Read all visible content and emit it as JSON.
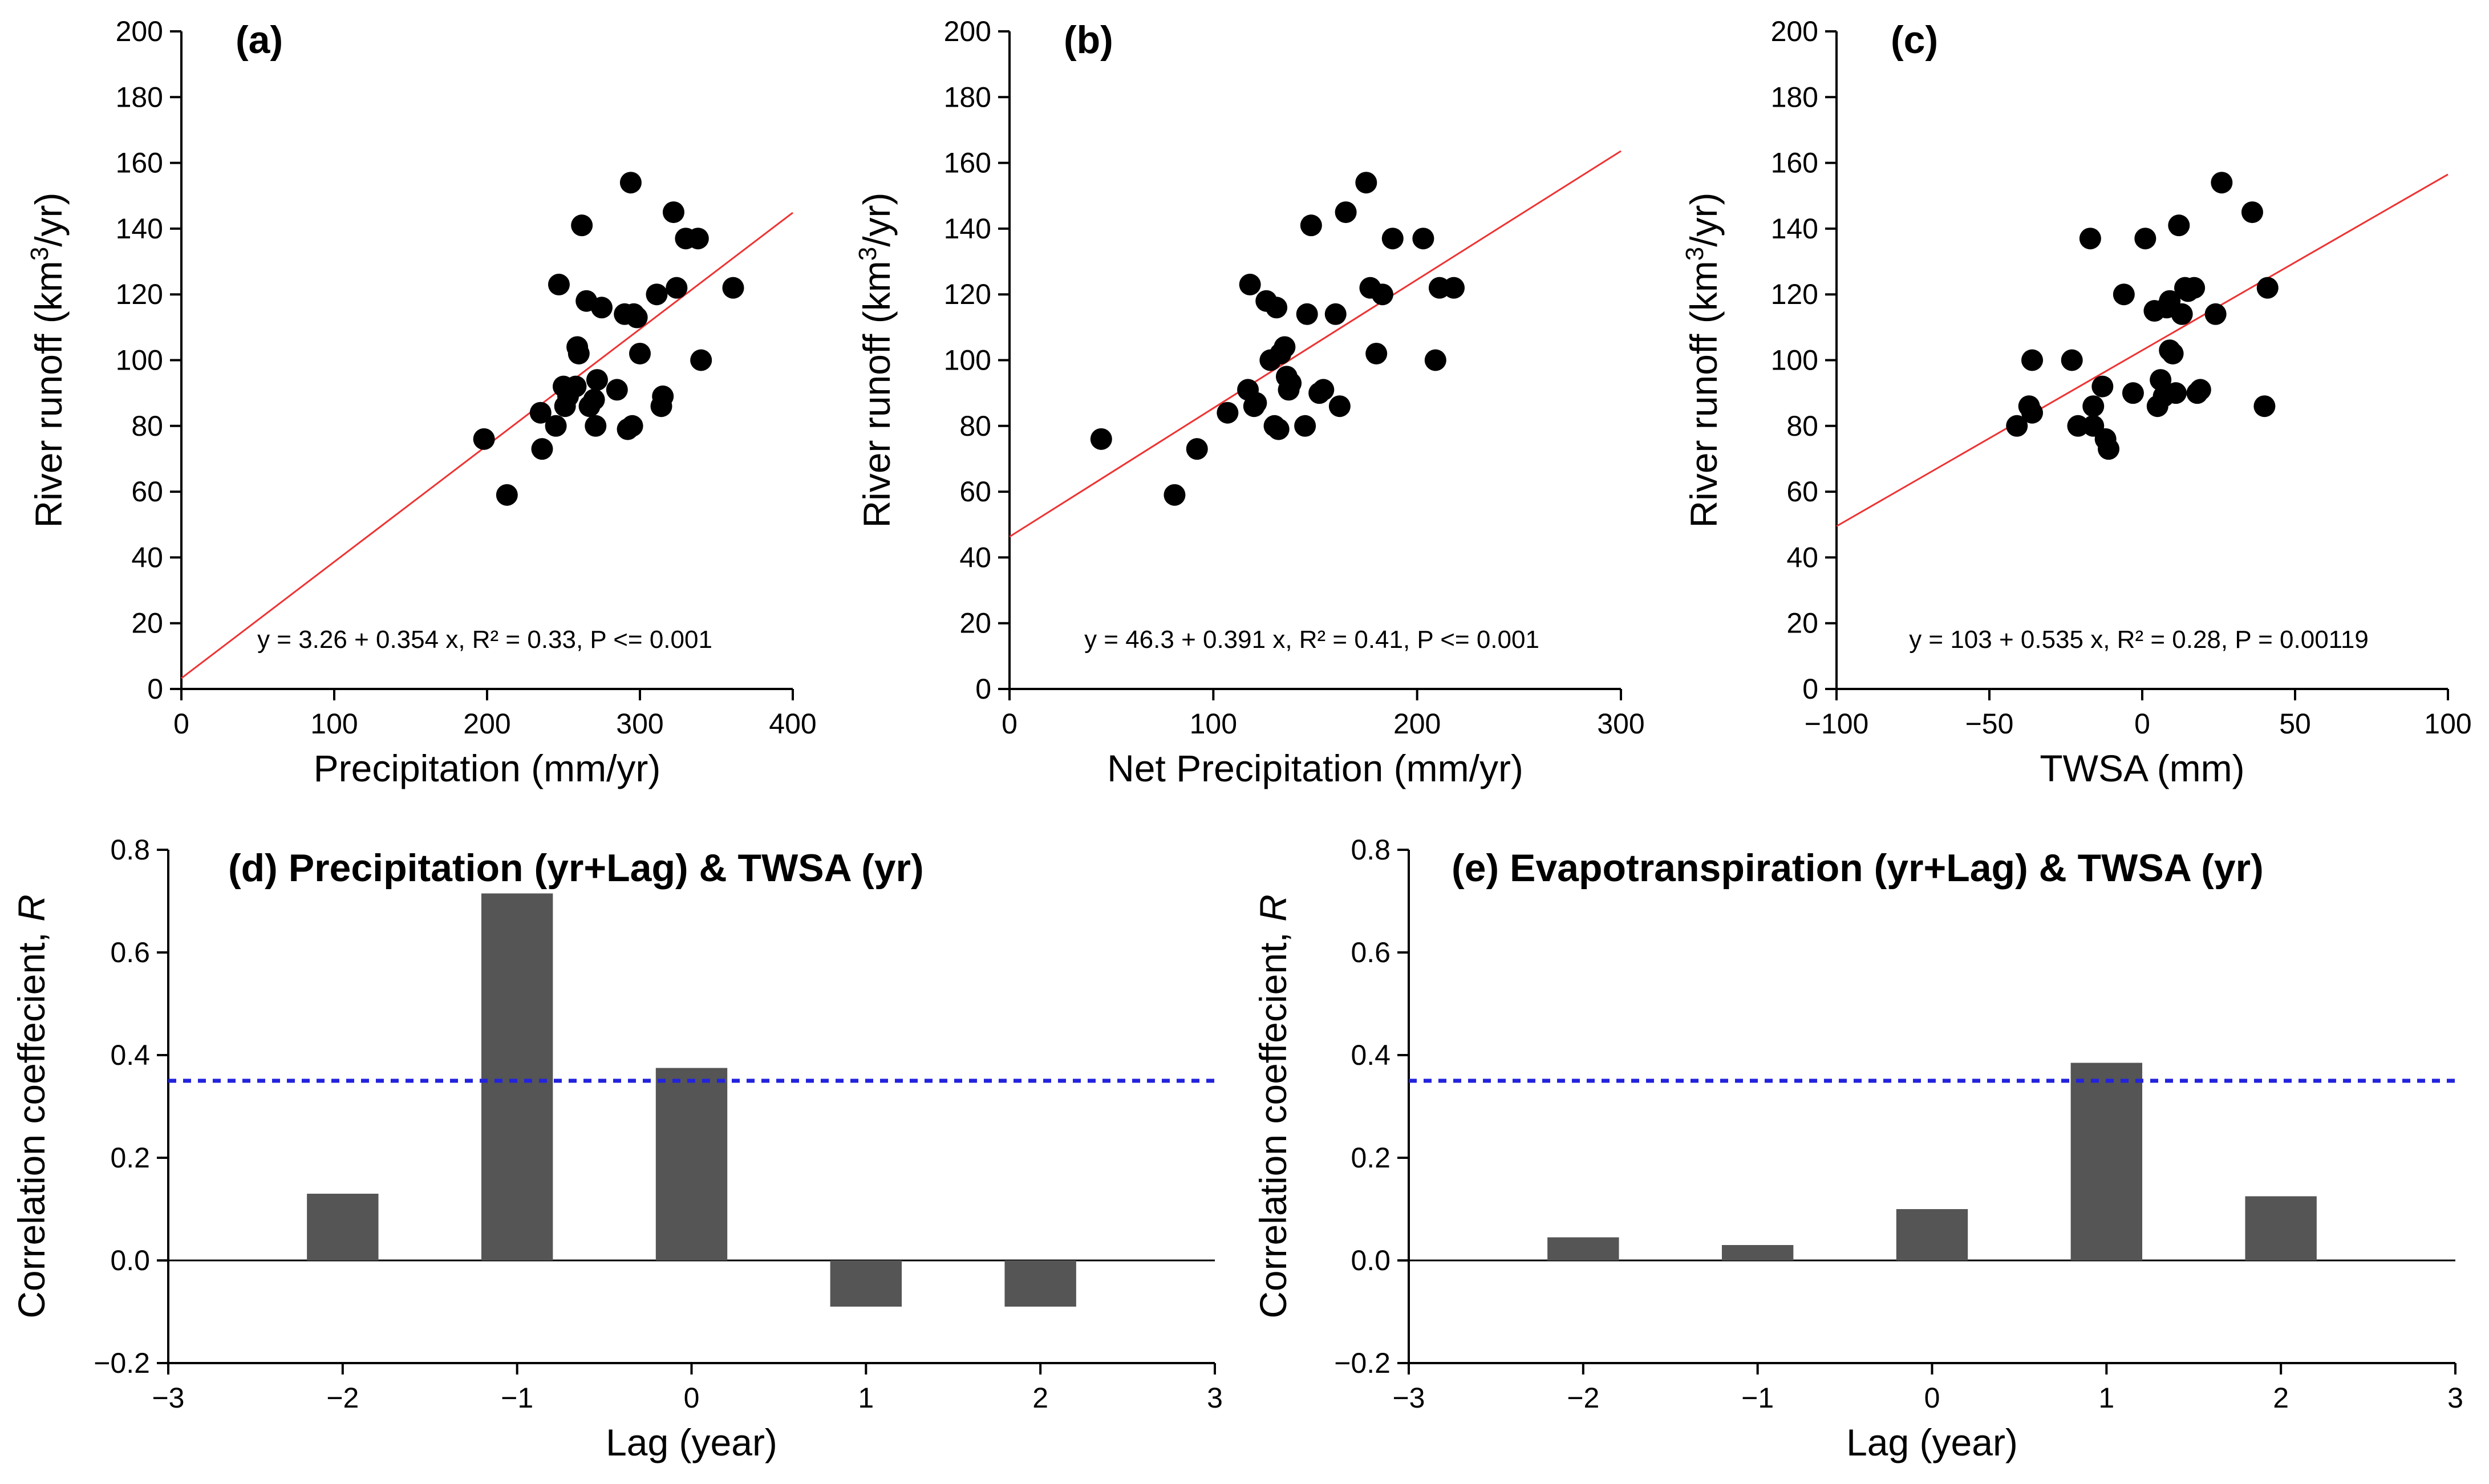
{
  "chart_data": [
    {
      "type": "scatter",
      "title": "(a)",
      "xlabel": "Precipitation (mm/yr)",
      "ylabel_main": "River runoff (km",
      "ylabel_sup": "3",
      "ylabel_tail": "/yr)",
      "xlim": [
        0,
        400
      ],
      "ylim": [
        0,
        200
      ],
      "xticks": [
        0,
        100,
        200,
        300,
        400
      ],
      "xtick_labels": [
        "0",
        "100",
        "200",
        "300",
        "400"
      ],
      "yticks": [
        0,
        20,
        40,
        60,
        80,
        100,
        120,
        140,
        160,
        180,
        200
      ],
      "ytick_labels": [
        "0",
        "20",
        "40",
        "60",
        "80",
        "100",
        "120",
        "140",
        "160",
        "180",
        "200"
      ],
      "equation": "y = 3.26 + 0.354 x, R² = 0.33, P <= 0.001",
      "fit": {
        "intercept": 3.26,
        "slope": 0.354,
        "color": "#ee3333"
      },
      "x": [
        198,
        213,
        235,
        236,
        245,
        247,
        250,
        251,
        253,
        258,
        259,
        260,
        262,
        265,
        267,
        270,
        271,
        272,
        275,
        285,
        290,
        292,
        294,
        295,
        296,
        298,
        300,
        311,
        314,
        315,
        322,
        324,
        330,
        338,
        340,
        361
      ],
      "y": [
        76,
        59,
        84,
        73,
        80,
        123,
        92,
        86,
        89,
        92,
        104,
        102,
        141,
        118,
        86,
        88,
        80,
        94,
        116,
        91,
        114,
        79,
        154,
        80,
        114,
        113,
        102,
        120,
        86,
        89,
        145,
        122,
        137,
        137,
        100,
        122
      ]
    },
    {
      "type": "scatter",
      "title": "(b)",
      "xlabel": "Net Precipitation (mm/yr)",
      "ylabel_main": "River runoff (km",
      "ylabel_sup": "3",
      "ylabel_tail": "/yr)",
      "xlim": [
        0,
        300
      ],
      "ylim": [
        0,
        200
      ],
      "xticks": [
        0,
        100,
        200,
        300
      ],
      "xtick_labels": [
        "0",
        "100",
        "200",
        "300"
      ],
      "yticks": [
        0,
        20,
        40,
        60,
        80,
        100,
        120,
        140,
        160,
        180,
        200
      ],
      "ytick_labels": [
        "0",
        "20",
        "40",
        "60",
        "80",
        "100",
        "120",
        "140",
        "160",
        "180",
        "200"
      ],
      "equation": "y = 46.3 + 0.391 x, R² = 0.41, P <= 0.001",
      "fit": {
        "intercept": 46.3,
        "slope": 0.391,
        "color": "#ee3333"
      },
      "x": [
        45,
        81,
        92,
        107,
        117,
        118,
        120,
        121,
        126,
        128,
        130,
        131,
        132,
        133,
        135,
        136,
        137,
        138,
        145,
        146,
        148,
        152,
        154,
        160,
        162,
        165,
        175,
        177,
        180,
        183,
        188,
        203,
        209,
        211,
        218
      ],
      "y": [
        76,
        59,
        73,
        84,
        91,
        123,
        86,
        87,
        118,
        100,
        80,
        116,
        79,
        102,
        104,
        95,
        91,
        93,
        80,
        114,
        141,
        90,
        91,
        114,
        86,
        145,
        154,
        122,
        102,
        120,
        137,
        137,
        100,
        122,
        122
      ]
    },
    {
      "type": "scatter",
      "title": "(c)",
      "xlabel": "TWSA (mm)",
      "ylabel_main": "River runoff (km",
      "ylabel_sup": "3",
      "ylabel_tail": "/yr)",
      "xlim": [
        -100,
        100
      ],
      "ylim": [
        0,
        200
      ],
      "xticks": [
        -100,
        -50,
        0,
        50,
        100
      ],
      "xtick_labels": [
        "−100",
        "−50",
        "0",
        "50",
        "100"
      ],
      "yticks": [
        0,
        20,
        40,
        60,
        80,
        100,
        120,
        140,
        160,
        180,
        200
      ],
      "ytick_labels": [
        "0",
        "20",
        "40",
        "60",
        "80",
        "100",
        "120",
        "140",
        "160",
        "180",
        "200"
      ],
      "equation": "y = 103 + 0.535 x, R² = 0.28, P = 0.00119",
      "fit": {
        "intercept": 103,
        "slope": 0.535,
        "color": "#ee3333"
      },
      "x": [
        -41,
        -37,
        -36,
        -36,
        -23,
        -21,
        -17,
        -16,
        -16,
        -13,
        -12,
        -11,
        -6,
        -3,
        1,
        4,
        5,
        6,
        7,
        8,
        9,
        9,
        10,
        11,
        12,
        13,
        14,
        15,
        17,
        18,
        19,
        24,
        26,
        36,
        40,
        41
      ],
      "y": [
        80,
        86,
        84,
        100,
        100,
        80,
        137,
        80,
        86,
        92,
        76,
        73,
        120,
        90,
        137,
        115,
        86,
        94,
        89,
        116,
        103,
        118,
        102,
        90,
        141,
        114,
        122,
        121,
        122,
        90,
        91,
        114,
        154,
        145,
        86,
        122
      ]
    },
    {
      "type": "bar",
      "title": "(d) Precipitation (yr+Lag) & TWSA (yr)",
      "xlabel": "Lag (year)",
      "ylabel": "Correlation coeffecient, ",
      "ylabel_italic": "R",
      "xlim": [
        -3,
        3
      ],
      "ylim": [
        -0.2,
        0.8
      ],
      "xticks": [
        -3,
        -2,
        -1,
        0,
        1,
        2,
        3
      ],
      "xtick_labels": [
        "−3",
        "−2",
        "−1",
        "0",
        "1",
        "2",
        "3"
      ],
      "yticks": [
        -0.2,
        0.0,
        0.2,
        0.4,
        0.6,
        0.8
      ],
      "ytick_labels": [
        "−0.2",
        "0.0",
        "0.2",
        "0.4",
        "0.6",
        "0.8"
      ],
      "categories": [
        -2,
        -1,
        0,
        1,
        2
      ],
      "values": [
        0.13,
        0.715,
        0.375,
        -0.09,
        -0.09
      ],
      "threshold": 0.35,
      "bar_color": "#555555",
      "threshold_color": "#2222dd"
    },
    {
      "type": "bar",
      "title": "(e) Evapotranspiration (yr+Lag) & TWSA (yr)",
      "xlabel": "Lag (year)",
      "ylabel": "Correlation coeffecient, ",
      "ylabel_italic": "R",
      "xlim": [
        -3,
        3
      ],
      "ylim": [
        -0.2,
        0.8
      ],
      "xticks": [
        -3,
        -2,
        -1,
        0,
        1,
        2,
        3
      ],
      "xtick_labels": [
        "−3",
        "−2",
        "−1",
        "0",
        "1",
        "2",
        "3"
      ],
      "yticks": [
        -0.2,
        0.0,
        0.2,
        0.4,
        0.6,
        0.8
      ],
      "ytick_labels": [
        "−0.2",
        "0.0",
        "0.2",
        "0.4",
        "0.6",
        "0.8"
      ],
      "categories": [
        -2,
        -1,
        0,
        1,
        2
      ],
      "values": [
        0.045,
        0.03,
        0.1,
        0.385,
        0.125
      ],
      "threshold": 0.35,
      "bar_color": "#555555",
      "threshold_color": "#2222dd"
    }
  ]
}
